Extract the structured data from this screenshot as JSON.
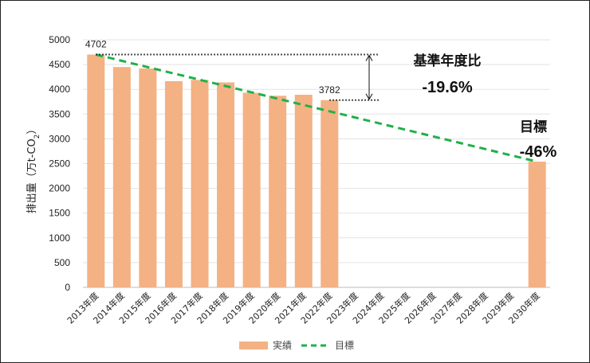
{
  "chart_data": {
    "type": "bar",
    "ylabel": "排出量（万t-CO",
    "ylabel_sub": "2",
    "ylabel_close": "）",
    "ylim": [
      0,
      5000
    ],
    "yticks": [
      "0",
      "500",
      "1000",
      "1500",
      "2000",
      "2500",
      "3000",
      "3500",
      "4000",
      "4500",
      "5000"
    ],
    "grid": true,
    "categories": [
      "2013年度",
      "2014年度",
      "2015年度",
      "2016年度",
      "2017年度",
      "2018年度",
      "2019年度",
      "2020年度",
      "2021年度",
      "2022年度",
      "2023年度",
      "2024年度",
      "2025年度",
      "2026年度",
      "2027年度",
      "2028年度",
      "2029年度",
      "2030年度"
    ],
    "series": [
      {
        "name": "実績",
        "type": "bar",
        "color": "#f4b183",
        "values": [
          4702,
          4450,
          4420,
          4165,
          4190,
          4140,
          3930,
          3870,
          3890,
          3782,
          null,
          null,
          null,
          null,
          null,
          null,
          null,
          2539
        ]
      },
      {
        "name": "目標",
        "type": "line",
        "style": "dashed",
        "color": "#1fb14a",
        "points": [
          [
            "2013年度",
            4702
          ],
          [
            "2030年度",
            2539
          ]
        ]
      }
    ],
    "data_labels": [
      {
        "category": "2013年度",
        "text": "4702"
      },
      {
        "category": "2022年度",
        "text": "3782"
      }
    ],
    "annotations": {
      "base_title": "基準年度比",
      "base_value": "-19.6%",
      "target_title": "目標",
      "target_value": "-46%"
    },
    "legend": {
      "position": "bottom",
      "items": [
        "実績",
        "目標"
      ]
    }
  }
}
